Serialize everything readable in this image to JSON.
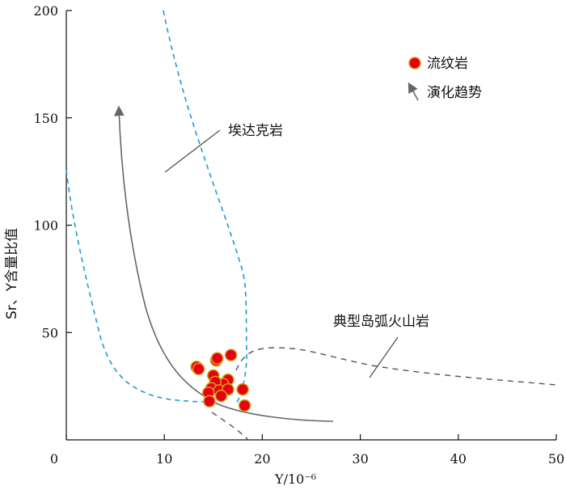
{
  "chart_data": {
    "type": "scatter",
    "xlabel": "Y/10⁻⁶",
    "ylabel": "Sr、Y含量比值",
    "xlim": [
      0,
      50
    ],
    "ylim": [
      0,
      200
    ],
    "x_ticks": [
      "0",
      "10",
      "20",
      "30",
      "40",
      "50"
    ],
    "y_ticks": [
      "50",
      "100",
      "150",
      "200"
    ],
    "legend": {
      "placement": "top-right",
      "entries": [
        "流纹岩",
        "演化趋势"
      ]
    },
    "series": [
      {
        "name": "流纹岩",
        "marker_color": "#e60012",
        "marker_edge": "#d4a017",
        "points": [
          {
            "x": 13.3,
            "y": 34
          },
          {
            "x": 13.5,
            "y": 33
          },
          {
            "x": 15.3,
            "y": 37
          },
          {
            "x": 15.4,
            "y": 38
          },
          {
            "x": 16.8,
            "y": 39.5
          },
          {
            "x": 15.0,
            "y": 30
          },
          {
            "x": 16.5,
            "y": 28
          },
          {
            "x": 16.0,
            "y": 26
          },
          {
            "x": 15.2,
            "y": 27
          },
          {
            "x": 14.8,
            "y": 24
          },
          {
            "x": 15.6,
            "y": 23
          },
          {
            "x": 16.5,
            "y": 23.5
          },
          {
            "x": 14.5,
            "y": 22
          },
          {
            "x": 15.8,
            "y": 20.5
          },
          {
            "x": 14.6,
            "y": 18
          },
          {
            "x": 18.0,
            "y": 23.5
          },
          {
            "x": 18.2,
            "y": 16
          }
        ]
      }
    ],
    "annotations": [
      "埃达克岩",
      "典型岛弧火山岩"
    ],
    "colors": {
      "field_boundary": "#1a9bd7",
      "trend": "#666666",
      "arc_field": "#555555"
    }
  }
}
